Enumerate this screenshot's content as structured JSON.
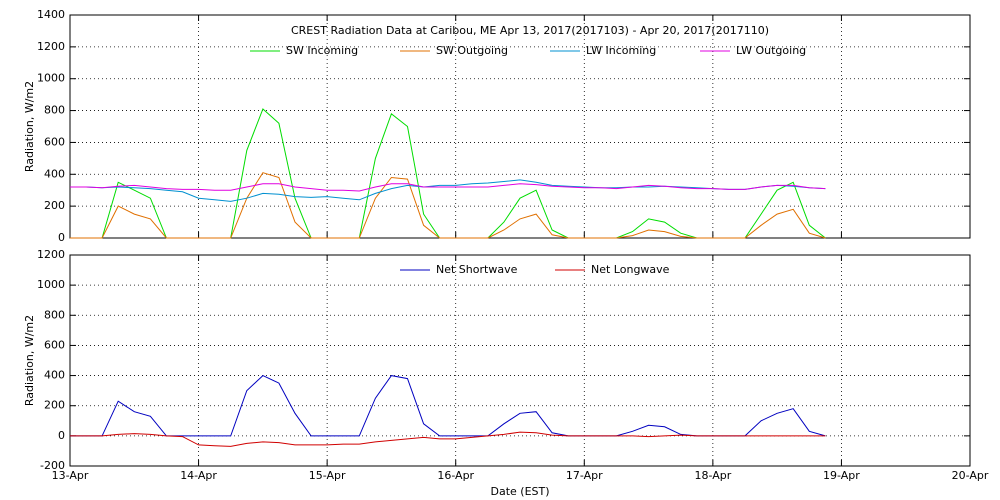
{
  "chart_data": [
    {
      "type": "line",
      "title": "CREST Radiation Data at Caribou, ME   Apr 13, 2017(2017103) - Apr 20, 2017(2017110)",
      "ylabel": "Radiation, W/m2",
      "grid": true,
      "x": [
        13,
        13.125,
        13.25,
        13.375,
        13.5,
        13.625,
        13.75,
        13.875,
        14,
        14.125,
        14.25,
        14.375,
        14.5,
        14.625,
        14.75,
        14.875,
        15,
        15.125,
        15.25,
        15.375,
        15.5,
        15.625,
        15.75,
        15.875,
        16,
        16.125,
        16.25,
        16.375,
        16.5,
        16.625,
        16.75,
        16.875,
        17,
        17.125,
        17.25,
        17.375,
        17.5,
        17.625,
        17.75,
        17.875,
        18,
        18.125,
        18.25,
        18.375,
        18.5,
        18.625,
        18.75,
        18.875
      ],
      "xlim": [
        13,
        20
      ],
      "ylim": [
        0,
        1400
      ],
      "yticks": [
        0,
        200,
        400,
        600,
        800,
        1000,
        1200,
        1400
      ],
      "series": [
        {
          "name": "SW Incoming",
          "color": "#00dd00",
          "values": [
            0,
            0,
            0,
            350,
            300,
            250,
            0,
            0,
            0,
            0,
            0,
            550,
            810,
            720,
            250,
            0,
            0,
            0,
            0,
            500,
            780,
            700,
            150,
            0,
            0,
            0,
            0,
            100,
            250,
            300,
            50,
            0,
            0,
            0,
            0,
            40,
            120,
            100,
            30,
            0,
            0,
            0,
            0,
            150,
            300,
            350,
            80,
            0
          ]
        },
        {
          "name": "SW Outgoing",
          "color": "#e07000",
          "values": [
            0,
            0,
            0,
            200,
            150,
            120,
            0,
            0,
            0,
            0,
            0,
            250,
            410,
            380,
            100,
            0,
            0,
            0,
            0,
            250,
            380,
            370,
            80,
            0,
            0,
            0,
            0,
            50,
            120,
            150,
            20,
            0,
            0,
            0,
            0,
            15,
            50,
            40,
            10,
            0,
            0,
            0,
            0,
            80,
            150,
            180,
            30,
            0
          ]
        },
        {
          "name": "LW Incoming",
          "color": "#0090d0",
          "values": [
            320,
            320,
            315,
            320,
            315,
            310,
            300,
            290,
            250,
            240,
            230,
            250,
            280,
            275,
            260,
            255,
            260,
            250,
            240,
            280,
            310,
            330,
            320,
            330,
            330,
            340,
            345,
            355,
            365,
            350,
            330,
            325,
            320,
            315,
            315,
            320,
            320,
            325,
            320,
            315,
            310,
            305,
            305,
            320,
            330,
            325,
            315,
            310
          ]
        },
        {
          "name": "LW Outgoing",
          "color": "#e000e0",
          "values": [
            320,
            320,
            315,
            325,
            330,
            320,
            310,
            305,
            305,
            300,
            300,
            320,
            340,
            340,
            320,
            310,
            300,
            300,
            295,
            320,
            340,
            340,
            320,
            320,
            320,
            320,
            320,
            330,
            340,
            335,
            325,
            320,
            315,
            315,
            310,
            320,
            330,
            325,
            315,
            310,
            310,
            305,
            305,
            320,
            330,
            330,
            315,
            310
          ]
        }
      ]
    },
    {
      "type": "line",
      "ylabel": "Radiation, W/m2",
      "xlabel": "Date (EST)",
      "grid": true,
      "x": [
        13,
        13.125,
        13.25,
        13.375,
        13.5,
        13.625,
        13.75,
        13.875,
        14,
        14.125,
        14.25,
        14.375,
        14.5,
        14.625,
        14.75,
        14.875,
        15,
        15.125,
        15.25,
        15.375,
        15.5,
        15.625,
        15.75,
        15.875,
        16,
        16.125,
        16.25,
        16.375,
        16.5,
        16.625,
        16.75,
        16.875,
        17,
        17.125,
        17.25,
        17.375,
        17.5,
        17.625,
        17.75,
        17.875,
        18,
        18.125,
        18.25,
        18.375,
        18.5,
        18.625,
        18.75,
        18.875
      ],
      "xlim": [
        13,
        20
      ],
      "ylim": [
        -200,
        1200
      ],
      "yticks": [
        -200,
        0,
        200,
        400,
        600,
        800,
        1000,
        1200
      ],
      "xticks": [
        {
          "value": 13,
          "label": "13-Apr"
        },
        {
          "value": 14,
          "label": "14-Apr"
        },
        {
          "value": 15,
          "label": "15-Apr"
        },
        {
          "value": 16,
          "label": "16-Apr"
        },
        {
          "value": 17,
          "label": "17-Apr"
        },
        {
          "value": 18,
          "label": "18-Apr"
        },
        {
          "value": 19,
          "label": "19-Apr"
        },
        {
          "value": 20,
          "label": "20-Apr"
        }
      ],
      "series": [
        {
          "name": "Net Shortwave",
          "color": "#0000c0",
          "values": [
            0,
            0,
            0,
            230,
            160,
            130,
            0,
            0,
            0,
            0,
            0,
            300,
            400,
            350,
            150,
            0,
            0,
            0,
            0,
            250,
            400,
            380,
            80,
            0,
            0,
            0,
            0,
            80,
            150,
            160,
            20,
            0,
            0,
            0,
            0,
            30,
            70,
            60,
            10,
            0,
            0,
            0,
            0,
            100,
            150,
            180,
            30,
            0
          ]
        },
        {
          "name": "Net Longwave",
          "color": "#d00000",
          "values": [
            0,
            0,
            0,
            10,
            15,
            10,
            0,
            -5,
            -60,
            -65,
            -70,
            -50,
            -40,
            -45,
            -60,
            -60,
            -60,
            -55,
            -55,
            -40,
            -30,
            -20,
            -10,
            -20,
            -20,
            -10,
            0,
            10,
            25,
            20,
            5,
            0,
            0,
            0,
            0,
            0,
            -5,
            0,
            5,
            0,
            0,
            0,
            0,
            0,
            0,
            0,
            0,
            0
          ]
        }
      ]
    }
  ]
}
